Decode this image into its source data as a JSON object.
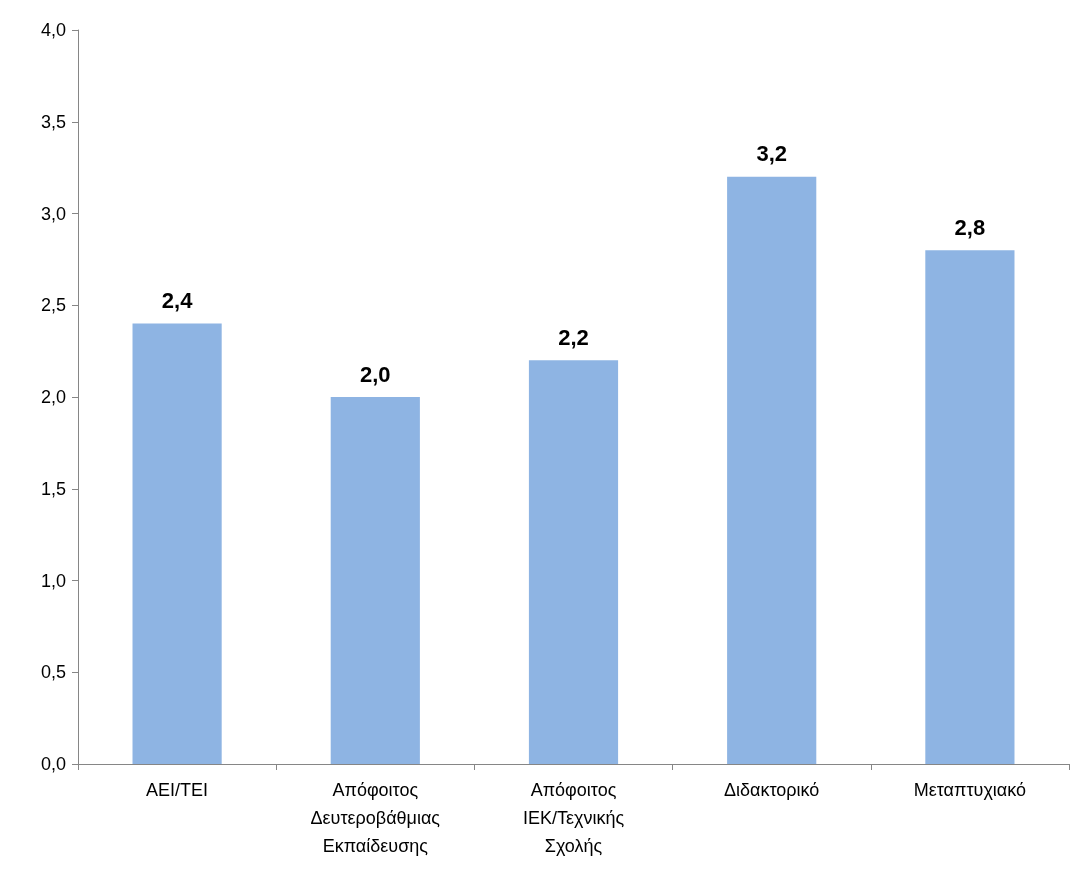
{
  "chart_data": {
    "type": "bar",
    "categories": [
      "ΑΕΙ/ΤΕΙ",
      "Απόφοιτος Δευτεροβάθμιας Εκπαίδευσης",
      "Απόφοιτος ΙΕΚ/Τεχνικής Σχολής",
      "Διδακτορικό",
      "Μεταπτυχιακό"
    ],
    "values": [
      2.4,
      2.0,
      2.2,
      3.2,
      2.8
    ],
    "value_labels": [
      "2,4",
      "2,0",
      "2,2",
      "3,2",
      "2,8"
    ],
    "color": "#8eb4e3",
    "ylim": [
      0,
      4
    ],
    "yticks": [
      {
        "value": 0,
        "label": "0,0"
      },
      {
        "value": 0.5,
        "label": "0,5"
      },
      {
        "value": 1,
        "label": "1,0"
      },
      {
        "value": 1.5,
        "label": "1,5"
      },
      {
        "value": 2,
        "label": "2,0"
      },
      {
        "value": 2.5,
        "label": "2,5"
      },
      {
        "value": 3,
        "label": "3,0"
      },
      {
        "value": 3.5,
        "label": "3,5"
      },
      {
        "value": 4,
        "label": "4,0"
      }
    ],
    "grid": false
  }
}
